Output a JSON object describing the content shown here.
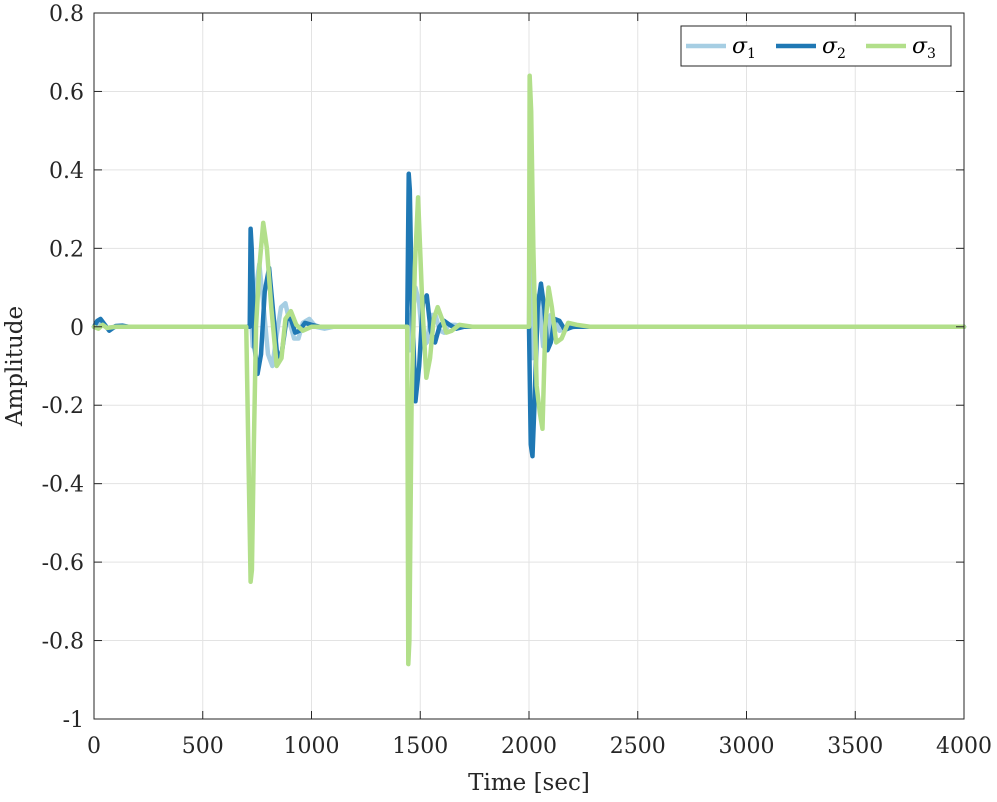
{
  "chart_data": {
    "type": "line",
    "xlabel": "Time [sec]",
    "ylabel": "Amplitude",
    "xlim": [
      0,
      4000
    ],
    "ylim": [
      -1,
      0.8
    ],
    "xticks": [
      0,
      500,
      1000,
      1500,
      2000,
      2500,
      3000,
      3500,
      4000
    ],
    "xtick_labels": [
      "0",
      "500",
      "1000",
      "1500",
      "2000",
      "2500",
      "3000",
      "3500",
      "4000"
    ],
    "yticks": [
      -1,
      -0.8,
      -0.6,
      -0.4,
      -0.2,
      0,
      0.2,
      0.4,
      0.6,
      0.8
    ],
    "ytick_labels": [
      "-1",
      "-0.8",
      "-0.6",
      "-0.4",
      "-0.2",
      "0",
      "0.2",
      "0.4",
      "0.6",
      "0.8"
    ],
    "grid": true,
    "legend_position": "top-right",
    "series": [
      {
        "name": "σ1",
        "color": "#a6cee3",
        "x": [
          0,
          20,
          40,
          60,
          100,
          150,
          700,
          718,
          722,
          730,
          745,
          760,
          780,
          800,
          820,
          840,
          860,
          880,
          900,
          920,
          940,
          960,
          990,
          1020,
          1060,
          1100,
          1440,
          1445,
          1452,
          1462,
          1478,
          1495,
          1512,
          1530,
          1550,
          1570,
          1590,
          1610,
          1630,
          1660,
          1700,
          1760,
          2000,
          2005,
          2015,
          2030,
          2048,
          2065,
          2082,
          2100,
          2120,
          2140,
          2170,
          2210,
          2260,
          2400,
          4000
        ],
        "y": [
          0,
          0.01,
          0.005,
          -0.003,
          0,
          0,
          0,
          0,
          0.03,
          -0.05,
          0.1,
          0.16,
          0.05,
          -0.07,
          -0.1,
          -0.02,
          0.05,
          0.06,
          0.01,
          -0.03,
          -0.03,
          0.01,
          0.02,
          0,
          -0.005,
          0,
          0,
          0.03,
          -0.06,
          0.04,
          0.1,
          0.06,
          -0.05,
          -0.04,
          0.03,
          0.03,
          -0.01,
          -0.015,
          0.005,
          0.005,
          0,
          0,
          0,
          0.34,
          -0.08,
          0.08,
          0.06,
          -0.05,
          -0.04,
          0.03,
          0.015,
          -0.01,
          -0.005,
          0,
          0,
          0,
          0
        ]
      },
      {
        "name": "σ2",
        "color": "#1f78b4",
        "x": [
          0,
          15,
          30,
          50,
          70,
          100,
          130,
          160,
          700,
          716,
          720,
          725,
          738,
          752,
          768,
          785,
          805,
          825,
          845,
          865,
          885,
          905,
          925,
          945,
          970,
          1000,
          1040,
          1080,
          1440,
          1447,
          1452,
          1460,
          1478,
          1495,
          1512,
          1530,
          1548,
          1568,
          1588,
          1610,
          1635,
          1665,
          1700,
          1750,
          2000,
          2008,
          2016,
          2025,
          2040,
          2055,
          2070,
          2085,
          2100,
          2118,
          2140,
          2165,
          2200,
          2250,
          2400,
          4000
        ],
        "y": [
          0,
          0.015,
          0.02,
          0.005,
          -0.01,
          0.002,
          0.003,
          0,
          0,
          0,
          0.25,
          0.2,
          -0.05,
          -0.12,
          -0.07,
          0.09,
          0.15,
          0.03,
          -0.09,
          -0.06,
          0.02,
          0.02,
          -0.015,
          -0.01,
          0.01,
          0.005,
          0,
          0,
          0,
          0.39,
          0.35,
          0.1,
          -0.19,
          -0.1,
          0.06,
          0.08,
          -0.01,
          -0.04,
          0.0,
          0.015,
          0.005,
          -0.005,
          0,
          0,
          0,
          -0.3,
          -0.33,
          -0.2,
          0.05,
          0.11,
          0.05,
          -0.06,
          -0.04,
          0.02,
          0.015,
          -0.008,
          0,
          0,
          0,
          0
        ]
      },
      {
        "name": "σ3",
        "color": "#b2df8a",
        "x": [
          0,
          20,
          40,
          60,
          100,
          150,
          700,
          720,
          726,
          735,
          745,
          760,
          778,
          795,
          815,
          840,
          862,
          880,
          905,
          930,
          960,
          1000,
          1050,
          1100,
          1440,
          1445,
          1450,
          1460,
          1475,
          1490,
          1510,
          1528,
          1545,
          1562,
          1580,
          1600,
          1620,
          1645,
          1680,
          1740,
          2000,
          2003,
          2010,
          2020,
          2035,
          2050,
          2062,
          2075,
          2090,
          2105,
          2125,
          2150,
          2180,
          2220,
          2280,
          2400,
          4000
        ],
        "y": [
          0,
          -0.005,
          0.005,
          -0.003,
          0,
          0,
          0,
          -0.65,
          -0.62,
          -0.3,
          0.0,
          0.15,
          0.265,
          0.2,
          0.05,
          -0.1,
          -0.08,
          0.02,
          0.04,
          0.005,
          -0.01,
          0,
          0,
          0,
          0,
          -0.86,
          -0.8,
          -0.2,
          0.15,
          0.33,
          0.05,
          -0.13,
          -0.08,
          0.02,
          0.05,
          0.02,
          -0.015,
          -0.01,
          0.005,
          0,
          0,
          0.64,
          0.55,
          0.2,
          -0.15,
          -0.22,
          -0.26,
          0.0,
          0.1,
          0.05,
          -0.04,
          -0.03,
          0.01,
          0.005,
          0,
          0,
          0
        ]
      }
    ]
  }
}
